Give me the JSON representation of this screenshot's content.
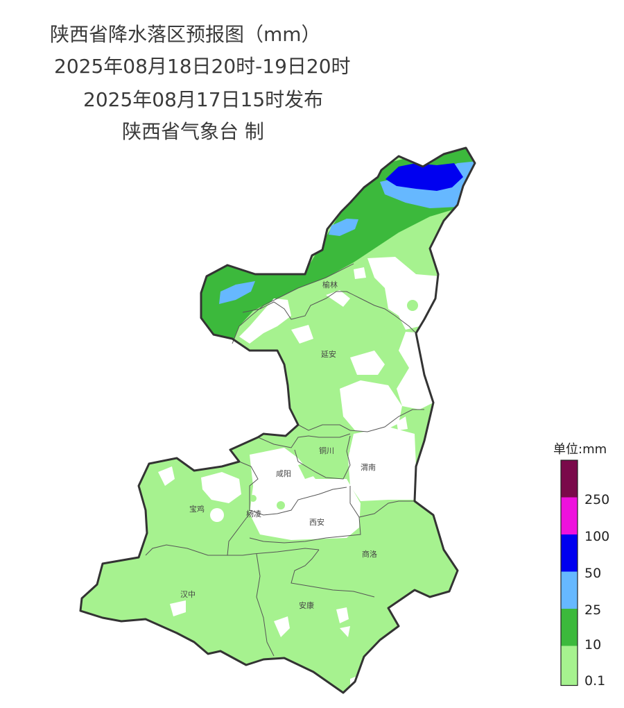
{
  "title": {
    "line1": "陕西省降水落区预报图（mm）",
    "line2": "2025年08月18日20时-19日20时",
    "line3": "2025年08月17日15时发布",
    "line4": "陕西省气象台 制"
  },
  "cities": {
    "yulin": "榆林",
    "yanan": "延安",
    "tongchuan": "铜川",
    "xianyang": "咸阳",
    "weinan": "渭南",
    "baoji": "宝鸡",
    "yangling": "杨凌",
    "xian": "西安",
    "shangluo": "商洛",
    "hanzhong": "汉中",
    "ankang": "安康"
  },
  "legend": {
    "title": "单位:mm",
    "labels": [
      "250",
      "100",
      "50",
      "25",
      "10",
      "0.1"
    ],
    "colors": {
      "over_250": "#7a0a4a",
      "100_250": "#ee11dd",
      "50_100": "#0000f0",
      "25_50": "#66b8ff",
      "10_25": "#3cb93c",
      "0.1_10": "#a6f28f"
    }
  }
}
